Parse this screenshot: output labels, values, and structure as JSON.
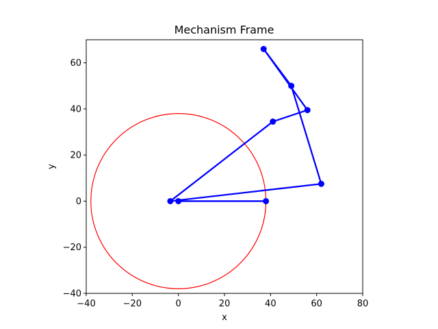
{
  "chart_data": {
    "type": "line",
    "title": "Mechanism Frame",
    "xlabel": "x",
    "ylabel": "y",
    "xlim": [
      -40,
      80
    ],
    "ylim": [
      -40,
      70
    ],
    "xticks": [
      -40,
      -20,
      0,
      20,
      40,
      60,
      80
    ],
    "yticks": [
      -40,
      -20,
      0,
      20,
      40,
      60
    ],
    "tick_labels_x": [
      "−40",
      "−20",
      "0",
      "20",
      "40",
      "60",
      "80"
    ],
    "tick_labels_y": [
      "−40",
      "−20",
      "0",
      "20",
      "40",
      "60"
    ],
    "grid": false,
    "circle": {
      "center": [
        0,
        0
      ],
      "radius": 38,
      "color": "#ff0000"
    },
    "series": [
      {
        "color": "#0000ff",
        "segments": [
          [
            [
              0,
              0
            ],
            [
              38,
              0
            ]
          ],
          [
            [
              -3.5,
              0
            ],
            [
              62,
              7.5
            ]
          ],
          [
            [
              62,
              7.5
            ],
            [
              49,
              50
            ]
          ],
          [
            [
              49,
              50
            ],
            [
              37,
              66
            ]
          ],
          [
            [
              -3.5,
              0
            ],
            [
              41,
              34.5
            ]
          ],
          [
            [
              41,
              34.5
            ],
            [
              56,
              39.5
            ]
          ],
          [
            [
              56,
              39.5
            ],
            [
              37,
              66
            ]
          ]
        ],
        "points": [
          [
            0,
            0
          ],
          [
            38,
            0
          ],
          [
            -3.5,
            0
          ],
          [
            62,
            7.5
          ],
          [
            49,
            50
          ],
          [
            37,
            66
          ],
          [
            41,
            34.5
          ],
          [
            56,
            39.5
          ]
        ]
      }
    ]
  }
}
